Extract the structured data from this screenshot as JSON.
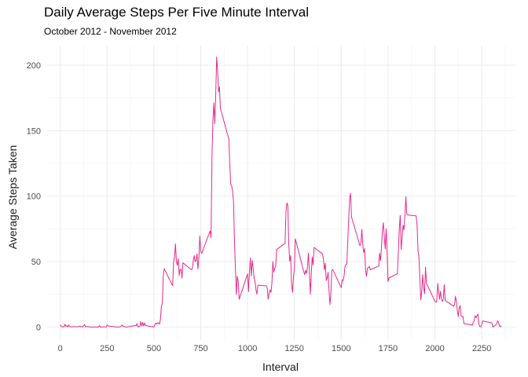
{
  "chart_data": {
    "type": "line",
    "title": "Daily Average Steps Per Five Minute Interval",
    "subtitle": "October 2012 - November 2012",
    "xlabel": "Interval",
    "ylabel": "Average Steps Taken",
    "xlim": [
      -70,
      2430
    ],
    "ylim": [
      -10,
      215
    ],
    "x_ticks": [
      0,
      250,
      500,
      750,
      1000,
      1250,
      1500,
      1750,
      2000,
      2250
    ],
    "y_ticks": [
      0,
      50,
      100,
      150,
      200
    ],
    "grid": true,
    "line_color": "#e7298a",
    "series": [
      {
        "values": [
          [
            0,
            1.7
          ],
          [
            5,
            0.3
          ],
          [
            10,
            0.1
          ],
          [
            15,
            0.2
          ],
          [
            20,
            0.1
          ],
          [
            25,
            2.1
          ],
          [
            30,
            0.5
          ],
          [
            35,
            0.9
          ],
          [
            40,
            0.0
          ],
          [
            45,
            1.5
          ],
          [
            50,
            0.3
          ],
          [
            55,
            0.1
          ],
          [
            100,
            0.3
          ],
          [
            105,
            0.7
          ],
          [
            110,
            0.2
          ],
          [
            115,
            0.3
          ],
          [
            120,
            0.0
          ],
          [
            125,
            1.1
          ],
          [
            130,
            1.8
          ],
          [
            135,
            0.2
          ],
          [
            140,
            0.2
          ],
          [
            145,
            0.4
          ],
          [
            150,
            0.3
          ],
          [
            155,
            0.0
          ],
          [
            200,
            0.0
          ],
          [
            205,
            0.0
          ],
          [
            210,
            1.1
          ],
          [
            215,
            0.0
          ],
          [
            220,
            0.0
          ],
          [
            225,
            0.1
          ],
          [
            230,
            0.0
          ],
          [
            235,
            0.2
          ],
          [
            240,
            0.0
          ],
          [
            245,
            0.0
          ],
          [
            250,
            1.5
          ],
          [
            255,
            0.9
          ],
          [
            300,
            0.0
          ],
          [
            305,
            0.0
          ],
          [
            310,
            0.0
          ],
          [
            315,
            0.0
          ],
          [
            320,
            0.2
          ],
          [
            325,
            0.6
          ],
          [
            330,
            1.6
          ],
          [
            335,
            0.6
          ],
          [
            340,
            0.5
          ],
          [
            345,
            0.1
          ],
          [
            350,
            0.0
          ],
          [
            355,
            0.0
          ],
          [
            400,
            1.2
          ],
          [
            405,
            0.9
          ],
          [
            410,
            2.6
          ],
          [
            415,
            0.0
          ],
          [
            420,
            0.3
          ],
          [
            425,
            0.4
          ],
          [
            430,
            4.1
          ],
          [
            435,
            0.7
          ],
          [
            440,
            3.5
          ],
          [
            445,
            0.8
          ],
          [
            450,
            3.1
          ],
          [
            455,
            1.1
          ],
          [
            500,
            0.0
          ],
          [
            505,
            1.6
          ],
          [
            510,
            3.0
          ],
          [
            515,
            2.2
          ],
          [
            520,
            3.3
          ],
          [
            525,
            3.0
          ],
          [
            530,
            2.1
          ],
          [
            535,
            6.1
          ],
          [
            540,
            16.0
          ],
          [
            545,
            18.3
          ],
          [
            550,
            39.5
          ],
          [
            555,
            44.5
          ],
          [
            600,
            31.5
          ],
          [
            605,
            49.3
          ],
          [
            610,
            53.8
          ],
          [
            615,
            63.5
          ],
          [
            620,
            50.0
          ],
          [
            625,
            47.1
          ],
          [
            630,
            52.2
          ],
          [
            635,
            39.3
          ],
          [
            640,
            44.0
          ],
          [
            645,
            44.2
          ],
          [
            650,
            37.4
          ],
          [
            655,
            49.0
          ],
          [
            700,
            43.8
          ],
          [
            705,
            44.4
          ],
          [
            710,
            50.5
          ],
          [
            715,
            54.5
          ],
          [
            720,
            49.9
          ],
          [
            725,
            50.9
          ],
          [
            730,
            55.7
          ],
          [
            735,
            44.3
          ],
          [
            740,
            52.3
          ],
          [
            745,
            69.5
          ],
          [
            750,
            57.8
          ],
          [
            755,
            56.2
          ],
          [
            800,
            73.4
          ],
          [
            805,
            68.2
          ],
          [
            810,
            129.4
          ],
          [
            815,
            157.5
          ],
          [
            820,
            171.2
          ],
          [
            825,
            155.4
          ],
          [
            830,
            177.3
          ],
          [
            835,
            206.2
          ],
          [
            840,
            195.9
          ],
          [
            845,
            179.6
          ],
          [
            850,
            183.4
          ],
          [
            855,
            167.0
          ],
          [
            900,
            143.5
          ],
          [
            905,
            124.0
          ],
          [
            910,
            109.1
          ],
          [
            915,
            108.1
          ],
          [
            920,
            103.7
          ],
          [
            925,
            95.97
          ],
          [
            930,
            66.2
          ],
          [
            935,
            45.2
          ],
          [
            940,
            24.8
          ],
          [
            945,
            38.8
          ],
          [
            950,
            34.98
          ],
          [
            955,
            21.1
          ],
          [
            1000,
            40.6
          ],
          [
            1005,
            26.98
          ],
          [
            1010,
            42.4
          ],
          [
            1015,
            52.7
          ],
          [
            1020,
            38.9
          ],
          [
            1025,
            50.8
          ],
          [
            1030,
            44.3
          ],
          [
            1035,
            37.4
          ],
          [
            1040,
            34.7
          ],
          [
            1045,
            28.3
          ],
          [
            1050,
            25.1
          ],
          [
            1055,
            31.9
          ],
          [
            1100,
            31.4
          ],
          [
            1105,
            29.7
          ],
          [
            1110,
            21.3
          ],
          [
            1115,
            25.5
          ],
          [
            1120,
            28.4
          ],
          [
            1125,
            26.5
          ],
          [
            1130,
            33.4
          ],
          [
            1135,
            49.98
          ],
          [
            1140,
            42.0
          ],
          [
            1145,
            44.6
          ],
          [
            1150,
            46.0
          ],
          [
            1155,
            59.2
          ],
          [
            1200,
            63.9
          ],
          [
            1205,
            87.7
          ],
          [
            1210,
            94.8
          ],
          [
            1215,
            92.8
          ],
          [
            1220,
            63.4
          ],
          [
            1225,
            50.2
          ],
          [
            1230,
            54.5
          ],
          [
            1235,
            32.4
          ],
          [
            1240,
            26.5
          ],
          [
            1245,
            37.7
          ],
          [
            1250,
            45.1
          ],
          [
            1255,
            67.3
          ],
          [
            1300,
            42.3
          ],
          [
            1305,
            39.9
          ],
          [
            1310,
            43.3
          ],
          [
            1315,
            40.98
          ],
          [
            1320,
            46.2
          ],
          [
            1325,
            56.4
          ],
          [
            1330,
            42.8
          ],
          [
            1335,
            25.1
          ],
          [
            1340,
            39.97
          ],
          [
            1345,
            53.5
          ],
          [
            1350,
            47.3
          ],
          [
            1355,
            60.8
          ],
          [
            1400,
            55.8
          ],
          [
            1405,
            51.96
          ],
          [
            1410,
            43.6
          ],
          [
            1415,
            48.7
          ],
          [
            1420,
            35.5
          ],
          [
            1425,
            37.5
          ],
          [
            1430,
            41.8
          ],
          [
            1435,
            27.5
          ],
          [
            1440,
            17.1
          ],
          [
            1445,
            26.1
          ],
          [
            1450,
            43.6
          ],
          [
            1455,
            43.8
          ],
          [
            1500,
            30.0
          ],
          [
            1505,
            36.1
          ],
          [
            1510,
            35.5
          ],
          [
            1515,
            38.8
          ],
          [
            1520,
            45.96
          ],
          [
            1525,
            47.8
          ],
          [
            1530,
            48.1
          ],
          [
            1535,
            65.3
          ],
          [
            1540,
            82.9
          ],
          [
            1545,
            98.7
          ],
          [
            1550,
            102.1
          ],
          [
            1555,
            83.96
          ],
          [
            1600,
            62.1
          ],
          [
            1605,
            64.1
          ],
          [
            1610,
            74.5
          ],
          [
            1615,
            63.2
          ],
          [
            1620,
            56.9
          ],
          [
            1625,
            59.8
          ],
          [
            1630,
            43.9
          ],
          [
            1635,
            38.6
          ],
          [
            1640,
            44.7
          ],
          [
            1645,
            45.5
          ],
          [
            1650,
            46.2
          ],
          [
            1655,
            43.7
          ],
          [
            1700,
            46.6
          ],
          [
            1705,
            56.3
          ],
          [
            1710,
            50.7
          ],
          [
            1715,
            61.2
          ],
          [
            1720,
            73.4
          ],
          [
            1725,
            79.7
          ],
          [
            1730,
            68.9
          ],
          [
            1735,
            59.7
          ],
          [
            1740,
            75.1
          ],
          [
            1745,
            56.5
          ],
          [
            1750,
            34.8
          ],
          [
            1755,
            37.5
          ],
          [
            1800,
            40.7
          ],
          [
            1805,
            58.0
          ],
          [
            1810,
            74.7
          ],
          [
            1815,
            85.3
          ],
          [
            1820,
            59.3
          ],
          [
            1825,
            67.8
          ],
          [
            1830,
            77.7
          ],
          [
            1835,
            74.2
          ],
          [
            1840,
            85.3
          ],
          [
            1845,
            99.5
          ],
          [
            1850,
            86.6
          ],
          [
            1855,
            85.6
          ],
          [
            1900,
            84.9
          ],
          [
            1905,
            77.8
          ],
          [
            1910,
            58.0
          ],
          [
            1915,
            53.4
          ],
          [
            1920,
            36.3
          ],
          [
            1925,
            20.7
          ],
          [
            1930,
            27.4
          ],
          [
            1935,
            40.0
          ],
          [
            1940,
            30.2
          ],
          [
            1945,
            25.5
          ],
          [
            1950,
            45.7
          ],
          [
            1955,
            33.5
          ],
          [
            2000,
            19.6
          ],
          [
            2005,
            19.0
          ],
          [
            2010,
            19.3
          ],
          [
            2015,
            33.3
          ],
          [
            2020,
            26.8
          ],
          [
            2025,
            21.2
          ],
          [
            2030,
            27.3
          ],
          [
            2035,
            21.3
          ],
          [
            2040,
            19.5
          ],
          [
            2045,
            21.3
          ],
          [
            2050,
            32.3
          ],
          [
            2055,
            20.2
          ],
          [
            2100,
            15.9
          ],
          [
            2105,
            17.2
          ],
          [
            2110,
            23.5
          ],
          [
            2115,
            19.2
          ],
          [
            2120,
            12.5
          ],
          [
            2125,
            8.0
          ],
          [
            2130,
            14.7
          ],
          [
            2135,
            16.3
          ],
          [
            2140,
            8.7
          ],
          [
            2145,
            7.8
          ],
          [
            2150,
            8.1
          ],
          [
            2155,
            2.6
          ],
          [
            2200,
            1.5
          ],
          [
            2205,
            3.7
          ],
          [
            2210,
            4.8
          ],
          [
            2215,
            8.5
          ],
          [
            2220,
            7.1
          ],
          [
            2225,
            8.7
          ],
          [
            2230,
            9.8
          ],
          [
            2235,
            2.2
          ],
          [
            2240,
            0.3
          ],
          [
            2245,
            0.1
          ],
          [
            2250,
            1.6
          ],
          [
            2255,
            4.6
          ],
          [
            2300,
            3.3
          ],
          [
            2305,
            2.8
          ],
          [
            2310,
            0.0
          ],
          [
            2315,
            0.8
          ],
          [
            2320,
            1.0
          ],
          [
            2325,
            1.6
          ],
          [
            2330,
            2.6
          ],
          [
            2335,
            4.7
          ],
          [
            2340,
            3.3
          ],
          [
            2345,
            0.6
          ],
          [
            2350,
            0.2
          ],
          [
            2355,
            1.1
          ]
        ]
      }
    ]
  }
}
